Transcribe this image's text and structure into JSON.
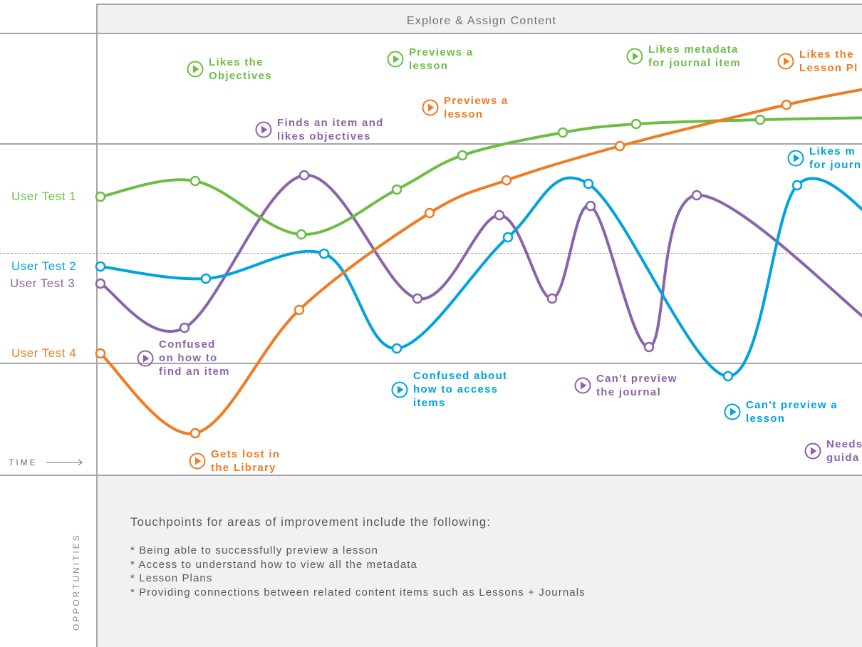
{
  "header": {
    "title": "Explore & Assign Content"
  },
  "colors": {
    "green": "#6cbd45",
    "blue": "#00a3de",
    "purple": "#8a63ad",
    "orange": "#ef7b22",
    "grid": "#a5a6a7"
  },
  "series": [
    {
      "name": "User Test 1",
      "color": "green"
    },
    {
      "name": "User Test 2",
      "color": "blue"
    },
    {
      "name": "User Test 3",
      "color": "purple"
    },
    {
      "name": "User Test 4",
      "color": "orange"
    }
  ],
  "annotations": [
    {
      "color": "green",
      "icon": "play-circle-icon",
      "lines": [
        "Likes the",
        "Objectives"
      ]
    },
    {
      "color": "green",
      "icon": "play-circle-icon",
      "lines": [
        "Previews a",
        "lesson"
      ]
    },
    {
      "color": "green",
      "icon": "play-circle-icon",
      "lines": [
        "Likes metadata",
        "for journal item"
      ]
    },
    {
      "color": "orange",
      "icon": "play-circle-icon",
      "lines": [
        "Likes the",
        "Lesson Pl"
      ]
    },
    {
      "color": "orange",
      "icon": "play-circle-icon",
      "lines": [
        "Previews a",
        "lesson"
      ]
    },
    {
      "color": "purple",
      "icon": "play-circle-icon",
      "lines": [
        "Finds an item and",
        "likes objectives"
      ]
    },
    {
      "color": "blue",
      "icon": "play-circle-icon",
      "lines": [
        "Likes m",
        "for journ"
      ]
    },
    {
      "color": "purple",
      "icon": "play-circle-icon",
      "lines": [
        "Confused",
        "on how to",
        "find an item"
      ]
    },
    {
      "color": "blue",
      "icon": "play-circle-icon",
      "lines": [
        "Confused about",
        "how to access",
        "items"
      ]
    },
    {
      "color": "purple",
      "icon": "play-circle-icon",
      "lines": [
        "Can't preview",
        "the journal"
      ]
    },
    {
      "color": "blue",
      "icon": "play-circle-icon",
      "lines": [
        "Can't preview a",
        "lesson"
      ]
    },
    {
      "color": "orange",
      "icon": "play-circle-icon",
      "lines": [
        "Gets lost in",
        "the Library"
      ]
    },
    {
      "color": "purple",
      "icon": "play-circle-icon",
      "lines": [
        "Needs",
        "guida"
      ]
    }
  ],
  "time_label": "TIME",
  "opportunities": {
    "side_label": "OPPORTUNITIES",
    "heading": "Touchpoints for areas of improvement include the following:",
    "items": [
      "* Being able to successfully preview a lesson",
      "* Access to understand how to view all the metadata",
      "* Lesson Plans",
      "* Providing connections between related content items such as Lessons + Journals"
    ]
  }
}
